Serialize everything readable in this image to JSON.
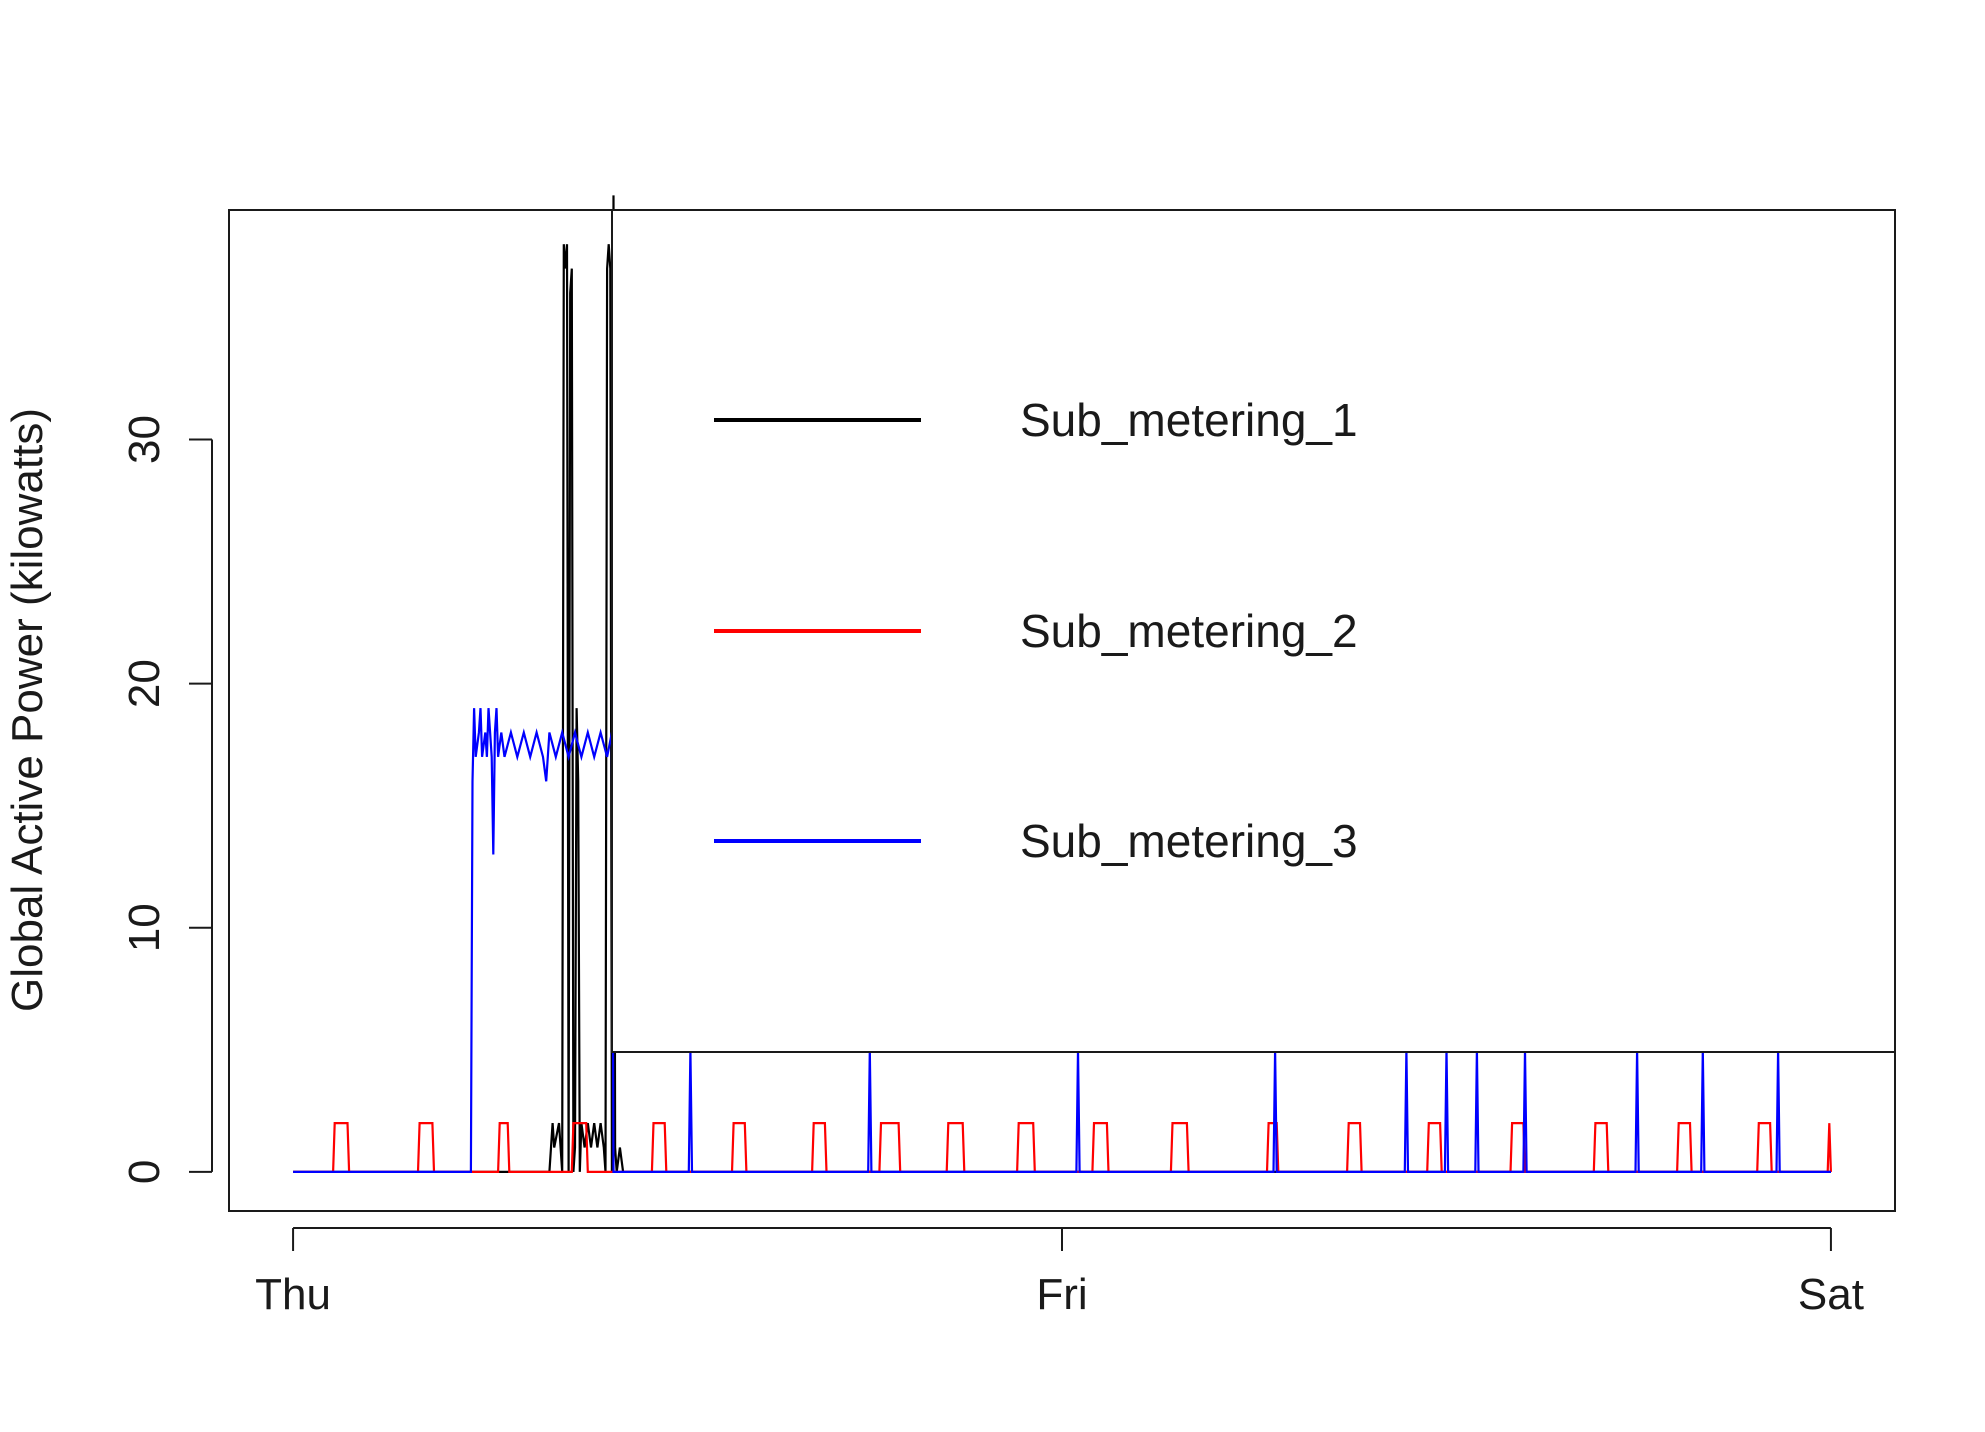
{
  "chart_data": {
    "type": "line",
    "title": "",
    "xlabel": "",
    "ylabel": "Global Active Power (kilowatts)",
    "x_unit": "hours from Thursday 00:00",
    "xlim": [
      -2,
      50
    ],
    "ylim": [
      -1.6,
      39.4
    ],
    "xticks": [
      {
        "value": 0,
        "label": "Thu"
      },
      {
        "value": 24,
        "label": "Fri"
      },
      {
        "value": 48,
        "label": "Sat"
      }
    ],
    "yticks": [
      {
        "value": 0,
        "label": "0"
      },
      {
        "value": 10,
        "label": "10"
      },
      {
        "value": 20,
        "label": "20"
      },
      {
        "value": 30,
        "label": "30"
      }
    ],
    "grid": false,
    "legend": {
      "placement": "top-right",
      "box": true
    },
    "series": [
      {
        "name": "Sub_metering_1",
        "color": "#000000",
        "points": [
          [
            0,
            0
          ],
          [
            8.0,
            0
          ],
          [
            8.1,
            2
          ],
          [
            8.15,
            1
          ],
          [
            8.3,
            2
          ],
          [
            8.4,
            0
          ],
          [
            8.45,
            38
          ],
          [
            8.5,
            37
          ],
          [
            8.55,
            38
          ],
          [
            8.6,
            0
          ],
          [
            8.65,
            36
          ],
          [
            8.7,
            37
          ],
          [
            8.75,
            0
          ],
          [
            8.8,
            1
          ],
          [
            8.85,
            19
          ],
          [
            8.9,
            16
          ],
          [
            8.95,
            0
          ],
          [
            9.0,
            2
          ],
          [
            9.1,
            1
          ],
          [
            9.2,
            2
          ],
          [
            9.3,
            1
          ],
          [
            9.4,
            2
          ],
          [
            9.5,
            1
          ],
          [
            9.6,
            2
          ],
          [
            9.7,
            1
          ],
          [
            9.75,
            0
          ],
          [
            9.8,
            37
          ],
          [
            9.85,
            38
          ],
          [
            9.9,
            37
          ],
          [
            9.95,
            0
          ],
          [
            10.0,
            40
          ],
          [
            10.05,
            1
          ],
          [
            10.1,
            0
          ],
          [
            10.2,
            1
          ],
          [
            10.3,
            0
          ],
          [
            48,
            0
          ]
        ]
      },
      {
        "name": "Sub_metering_2",
        "color": "#ff0000",
        "points": [
          [
            0,
            0
          ],
          [
            1.25,
            0
          ],
          [
            1.3,
            2
          ],
          [
            1.7,
            2
          ],
          [
            1.75,
            0
          ],
          [
            3.9,
            0
          ],
          [
            3.95,
            2
          ],
          [
            4.35,
            2
          ],
          [
            4.4,
            0
          ],
          [
            6.4,
            0
          ],
          [
            6.45,
            2
          ],
          [
            6.7,
            2
          ],
          [
            6.75,
            0
          ],
          [
            8.7,
            0
          ],
          [
            8.75,
            2
          ],
          [
            9.15,
            2
          ],
          [
            9.2,
            0
          ],
          [
            11.2,
            0
          ],
          [
            11.25,
            2
          ],
          [
            11.6,
            2
          ],
          [
            11.65,
            0
          ],
          [
            13.7,
            0
          ],
          [
            13.75,
            2
          ],
          [
            14.1,
            2
          ],
          [
            14.15,
            0
          ],
          [
            16.2,
            0
          ],
          [
            16.25,
            2
          ],
          [
            16.6,
            2
          ],
          [
            16.65,
            0
          ],
          [
            18.3,
            0
          ],
          [
            18.35,
            2
          ],
          [
            18.9,
            2
          ],
          [
            18.95,
            0
          ],
          [
            20.4,
            0
          ],
          [
            20.45,
            2
          ],
          [
            20.9,
            2
          ],
          [
            20.95,
            0
          ],
          [
            22.6,
            0
          ],
          [
            22.65,
            2
          ],
          [
            23.1,
            2
          ],
          [
            23.15,
            0
          ],
          [
            24.95,
            0
          ],
          [
            25.0,
            2
          ],
          [
            25.4,
            2
          ],
          [
            25.45,
            0
          ],
          [
            27.4,
            0
          ],
          [
            27.45,
            2
          ],
          [
            27.9,
            2
          ],
          [
            27.95,
            0
          ],
          [
            30.4,
            0
          ],
          [
            30.45,
            2
          ],
          [
            30.7,
            2
          ],
          [
            30.75,
            0
          ],
          [
            32.9,
            0
          ],
          [
            32.95,
            2
          ],
          [
            33.3,
            2
          ],
          [
            33.35,
            0
          ],
          [
            35.4,
            0
          ],
          [
            35.45,
            2
          ],
          [
            35.8,
            2
          ],
          [
            35.85,
            0
          ],
          [
            38.0,
            0
          ],
          [
            38.05,
            2
          ],
          [
            38.4,
            2
          ],
          [
            38.45,
            0
          ],
          [
            40.6,
            0
          ],
          [
            40.65,
            2
          ],
          [
            41.0,
            2
          ],
          [
            41.05,
            0
          ],
          [
            43.2,
            0
          ],
          [
            43.25,
            2
          ],
          [
            43.6,
            2
          ],
          [
            43.65,
            0
          ],
          [
            45.7,
            0
          ],
          [
            45.75,
            2
          ],
          [
            46.1,
            2
          ],
          [
            46.15,
            0
          ],
          [
            47.9,
            0
          ],
          [
            47.95,
            2
          ],
          [
            48,
            0
          ]
        ]
      },
      {
        "name": "Sub_metering_3",
        "color": "#0000ff",
        "points": [
          [
            0,
            0
          ],
          [
            5.55,
            0
          ],
          [
            5.6,
            16
          ],
          [
            5.65,
            19
          ],
          [
            5.7,
            17
          ],
          [
            5.8,
            18
          ],
          [
            5.85,
            19
          ],
          [
            5.9,
            17
          ],
          [
            6.0,
            18
          ],
          [
            6.05,
            17
          ],
          [
            6.1,
            19
          ],
          [
            6.15,
            18
          ],
          [
            6.2,
            17
          ],
          [
            6.25,
            13
          ],
          [
            6.3,
            18
          ],
          [
            6.35,
            19
          ],
          [
            6.4,
            17
          ],
          [
            6.5,
            18
          ],
          [
            6.6,
            17
          ],
          [
            6.8,
            18
          ],
          [
            7.0,
            17
          ],
          [
            7.2,
            18
          ],
          [
            7.4,
            17
          ],
          [
            7.6,
            18
          ],
          [
            7.8,
            17
          ],
          [
            7.9,
            16
          ],
          [
            8.0,
            18
          ],
          [
            8.2,
            17
          ],
          [
            8.4,
            18
          ],
          [
            8.6,
            17
          ],
          [
            8.8,
            18
          ],
          [
            9.0,
            17
          ],
          [
            9.2,
            18
          ],
          [
            9.4,
            17
          ],
          [
            9.6,
            18
          ],
          [
            9.8,
            17
          ],
          [
            9.95,
            18
          ],
          [
            10.0,
            0
          ],
          [
            12.35,
            0
          ],
          [
            12.4,
            5
          ],
          [
            12.45,
            0
          ],
          [
            17.95,
            0
          ],
          [
            18.0,
            5
          ],
          [
            18.05,
            0
          ],
          [
            24.45,
            0
          ],
          [
            24.5,
            5
          ],
          [
            24.55,
            0
          ],
          [
            30.6,
            0
          ],
          [
            30.65,
            5
          ],
          [
            30.7,
            0
          ],
          [
            34.7,
            0
          ],
          [
            34.75,
            5
          ],
          [
            34.8,
            0
          ],
          [
            35.95,
            0
          ],
          [
            36.0,
            5
          ],
          [
            36.05,
            0
          ],
          [
            36.9,
            0
          ],
          [
            36.95,
            5
          ],
          [
            37.0,
            0
          ],
          [
            38.4,
            0
          ],
          [
            38.45,
            5
          ],
          [
            38.5,
            0
          ],
          [
            41.9,
            0
          ],
          [
            41.95,
            5
          ],
          [
            42.0,
            0
          ],
          [
            43.95,
            0
          ],
          [
            44.0,
            5
          ],
          [
            44.05,
            0
          ],
          [
            46.3,
            0
          ],
          [
            46.35,
            5
          ],
          [
            46.4,
            0
          ],
          [
            48,
            0
          ]
        ]
      }
    ]
  }
}
